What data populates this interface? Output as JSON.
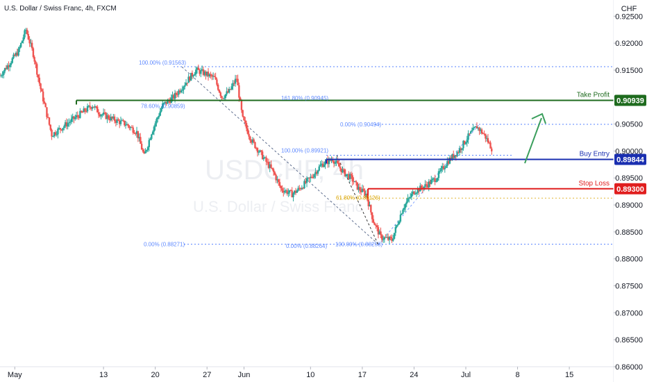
{
  "header": {
    "title": "U.S. Dollar / Swiss Franc, 4h, FXCM",
    "currency": "CHF"
  },
  "watermark": {
    "symbol": "USDCHF, 4h",
    "name": "U.S. Dollar / Swiss Franc"
  },
  "chart_data": {
    "type": "candlestick",
    "title": "U.S. Dollar / Swiss Franc, 4h, FXCM",
    "y_axis": {
      "unit": "CHF",
      "range": [
        0.86,
        0.928
      ],
      "ticks": [
        0.925,
        0.92,
        0.915,
        0.91,
        0.905,
        0.9,
        0.895,
        0.89,
        0.885,
        0.88,
        0.875,
        0.87,
        0.865,
        0.86
      ],
      "tick_labels": [
        "0.92500",
        "0.92000",
        "0.91500",
        "0.91000",
        "0.90500",
        "0.90000",
        "0.89500",
        "0.89000",
        "0.88500",
        "0.88000",
        "0.87500",
        "0.87000",
        "0.86500",
        "0.86000"
      ]
    },
    "x_axis": {
      "labels": [
        "May",
        "13",
        "20",
        "27",
        "Jun",
        "10",
        "17",
        "24",
        "Jul",
        "8",
        "15"
      ],
      "label_days": [
        0,
        12,
        19,
        26,
        31,
        40,
        47,
        54,
        61,
        68,
        75
      ],
      "range_days": [
        -2,
        81
      ]
    },
    "series_waypoints": [
      [
        -2,
        0.914
      ],
      [
        0.5,
        0.9185
      ],
      [
        1.5,
        0.9225
      ],
      [
        2.5,
        0.918
      ],
      [
        3.5,
        0.9115
      ],
      [
        5,
        0.903
      ],
      [
        6,
        0.904
      ],
      [
        7.5,
        0.9055
      ],
      [
        9,
        0.907
      ],
      [
        10.5,
        0.9085
      ],
      [
        11.5,
        0.907
      ],
      [
        13,
        0.906
      ],
      [
        15,
        0.905
      ],
      [
        16.5,
        0.9035
      ],
      [
        17.5,
        0.899
      ],
      [
        18.5,
        0.9035
      ],
      [
        20,
        0.9085
      ],
      [
        21.5,
        0.91
      ],
      [
        23,
        0.9125
      ],
      [
        24.5,
        0.915
      ],
      [
        25.5,
        0.9145
      ],
      [
        27,
        0.9135
      ],
      [
        28,
        0.91
      ],
      [
        29,
        0.911
      ],
      [
        30,
        0.9135
      ],
      [
        30.8,
        0.906
      ],
      [
        32,
        0.902
      ],
      [
        33.5,
        0.899
      ],
      [
        35,
        0.896
      ],
      [
        36,
        0.893
      ],
      [
        37.5,
        0.892
      ],
      [
        38.5,
        0.893
      ],
      [
        40,
        0.895
      ],
      [
        41.5,
        0.8975
      ],
      [
        43,
        0.8985
      ],
      [
        44.5,
        0.896
      ],
      [
        45.5,
        0.895
      ],
      [
        46.5,
        0.893
      ],
      [
        47.5,
        0.892
      ],
      [
        48.5,
        0.887
      ],
      [
        49.5,
        0.884
      ],
      [
        51,
        0.8835
      ],
      [
        52.5,
        0.8895
      ],
      [
        54,
        0.8925
      ],
      [
        55.5,
        0.8935
      ],
      [
        57,
        0.895
      ],
      [
        58.5,
        0.898
      ],
      [
        60,
        0.9
      ],
      [
        61.5,
        0.903
      ],
      [
        62.5,
        0.9045
      ],
      [
        63.5,
        0.903
      ],
      [
        64.5,
        0.9005
      ]
    ],
    "levels": {
      "take_profit": {
        "label": "Take Profit",
        "value": 0.90939,
        "price_label": "0.90939",
        "color": "#1e6b1e"
      },
      "buy_entry": {
        "label": "Buy Entry",
        "value": 0.89844,
        "price_label": "0.89844",
        "color": "#1a2fb0"
      },
      "stop_loss": {
        "label": "Stop Loss",
        "value": 0.893,
        "price_label": "0.89300",
        "color": "#e01e1e"
      }
    },
    "fib_annotations": [
      {
        "text": "100.00% (0.91563)",
        "value": 0.91563
      },
      {
        "text": "78.60% (0.90859)",
        "value": 0.90859
      },
      {
        "text": "161.80% (0.90945)",
        "value": 0.90945
      },
      {
        "text": "0.00% (0.90494)",
        "value": 0.90494
      },
      {
        "text": "100.00% (0.89921)",
        "value": 0.89921
      },
      {
        "text": "0.00% (0.88271)",
        "value": 0.88271
      },
      {
        "text": "0.00% (0.88264)",
        "value": 0.88264
      },
      {
        "text": "100.00% (0.88258)",
        "value": 0.88258
      },
      {
        "text": "61.80% (0.89126)",
        "value": 0.89126
      }
    ],
    "colors": {
      "up": "#26a69a",
      "down": "#ef5350",
      "fib_line": "#2962ff",
      "arrow": "#3a9e5c"
    }
  }
}
